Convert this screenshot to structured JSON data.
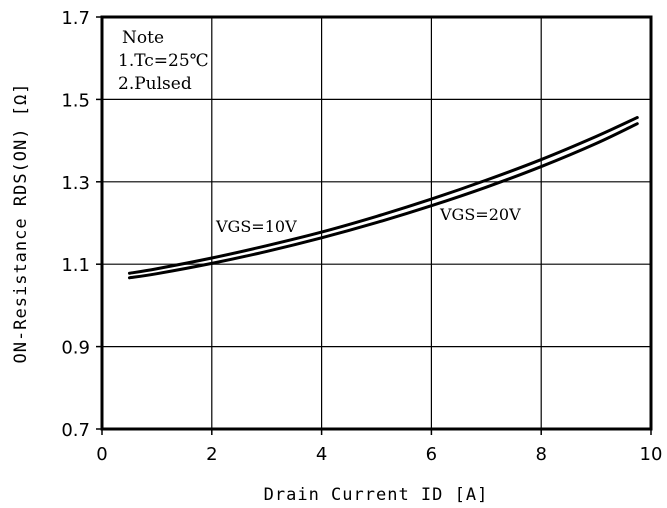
{
  "chart_data": {
    "type": "line",
    "xlabel": "Drain Current ID [A]",
    "ylabel": "ON-Resistance RDS(ON) [Ω]",
    "xlim": [
      0,
      10
    ],
    "ylim": [
      0.7,
      1.7
    ],
    "x_ticks": [
      "0",
      "2",
      "4",
      "6",
      "8",
      "10"
    ],
    "y_ticks": [
      "0.7",
      "0.9",
      "1.1",
      "1.3",
      "1.5",
      "1.7"
    ],
    "grid": true,
    "annotations": {
      "note_title": "Note",
      "note_line1": "1.Tc=25℃",
      "note_line2": "2.Pulsed"
    },
    "series": [
      {
        "name": "VGS=10V",
        "x": [
          0.5,
          1,
          2,
          3,
          4,
          5,
          6,
          7,
          8,
          9,
          9.75
        ],
        "y": [
          1.078,
          1.089,
          1.115,
          1.145,
          1.178,
          1.216,
          1.258,
          1.304,
          1.354,
          1.41,
          1.456
        ]
      },
      {
        "name": "VGS=20V",
        "x": [
          0.5,
          1,
          2,
          3,
          4,
          5,
          6,
          7,
          8,
          9,
          9.75
        ],
        "y": [
          1.067,
          1.077,
          1.102,
          1.131,
          1.164,
          1.201,
          1.242,
          1.287,
          1.337,
          1.393,
          1.441
        ]
      }
    ]
  }
}
